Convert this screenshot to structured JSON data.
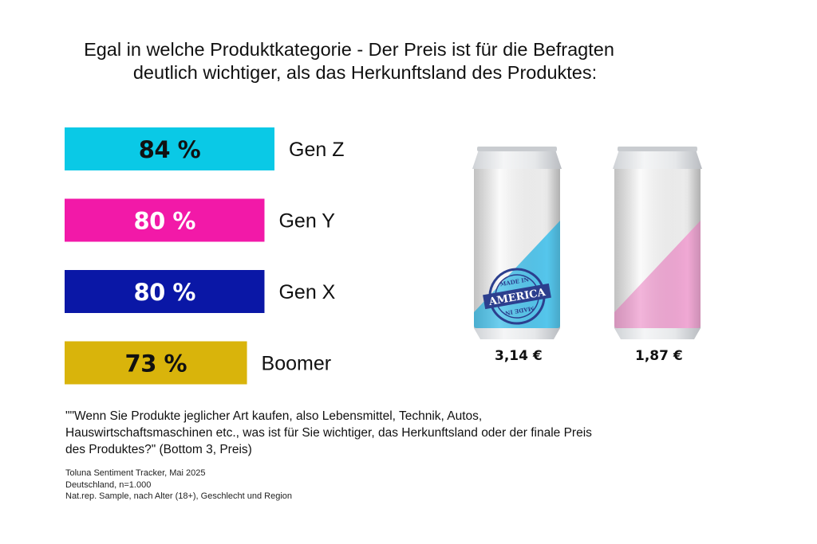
{
  "title_lines": [
    "Egal in welche Produktkategorie - Der Preis ist für die Befragten",
    "deutlich wichtiger, als das Herkunftsland des Produktes:"
  ],
  "chart_data": {
    "type": "bar",
    "orientation": "horizontal",
    "categories": [
      "Gen Z",
      "Gen Y",
      "Gen X",
      "Boomer"
    ],
    "values": [
      84,
      80,
      80,
      73
    ],
    "value_labels": [
      "84 %",
      "80 %",
      "80 %",
      "73 %"
    ],
    "colors": [
      "#0ac9e6",
      "#f219a8",
      "#0a17a6",
      "#d9b40b"
    ],
    "label_colors": [
      "#111111",
      "#ffffff",
      "#ffffff",
      "#111111"
    ],
    "xlim": [
      0,
      100
    ],
    "grid": false
  },
  "products": [
    {
      "price": "3,14 €",
      "color": "#55c6ec",
      "stamp": {
        "top": "MADE IN",
        "main": "AMERICA",
        "bottom": "MADE IN"
      }
    },
    {
      "price": "1,87 €",
      "color": "#f0a8d4"
    }
  ],
  "question": "\"\"Wenn Sie Produkte jeglicher Art kaufen, also Lebensmittel, Technik, Autos, Hauswirtschaftsmaschinen etc., was ist für Sie wichtiger, das Herkunftsland oder der finale Preis des Produktes?\" (Bottom 3, Preis)",
  "source_lines": [
    "Toluna Sentiment Tracker,  Mai 2025",
    "Deutschland, n=1.000",
    "Nat.rep. Sample, nach Alter (18+), Geschlecht und Region"
  ]
}
